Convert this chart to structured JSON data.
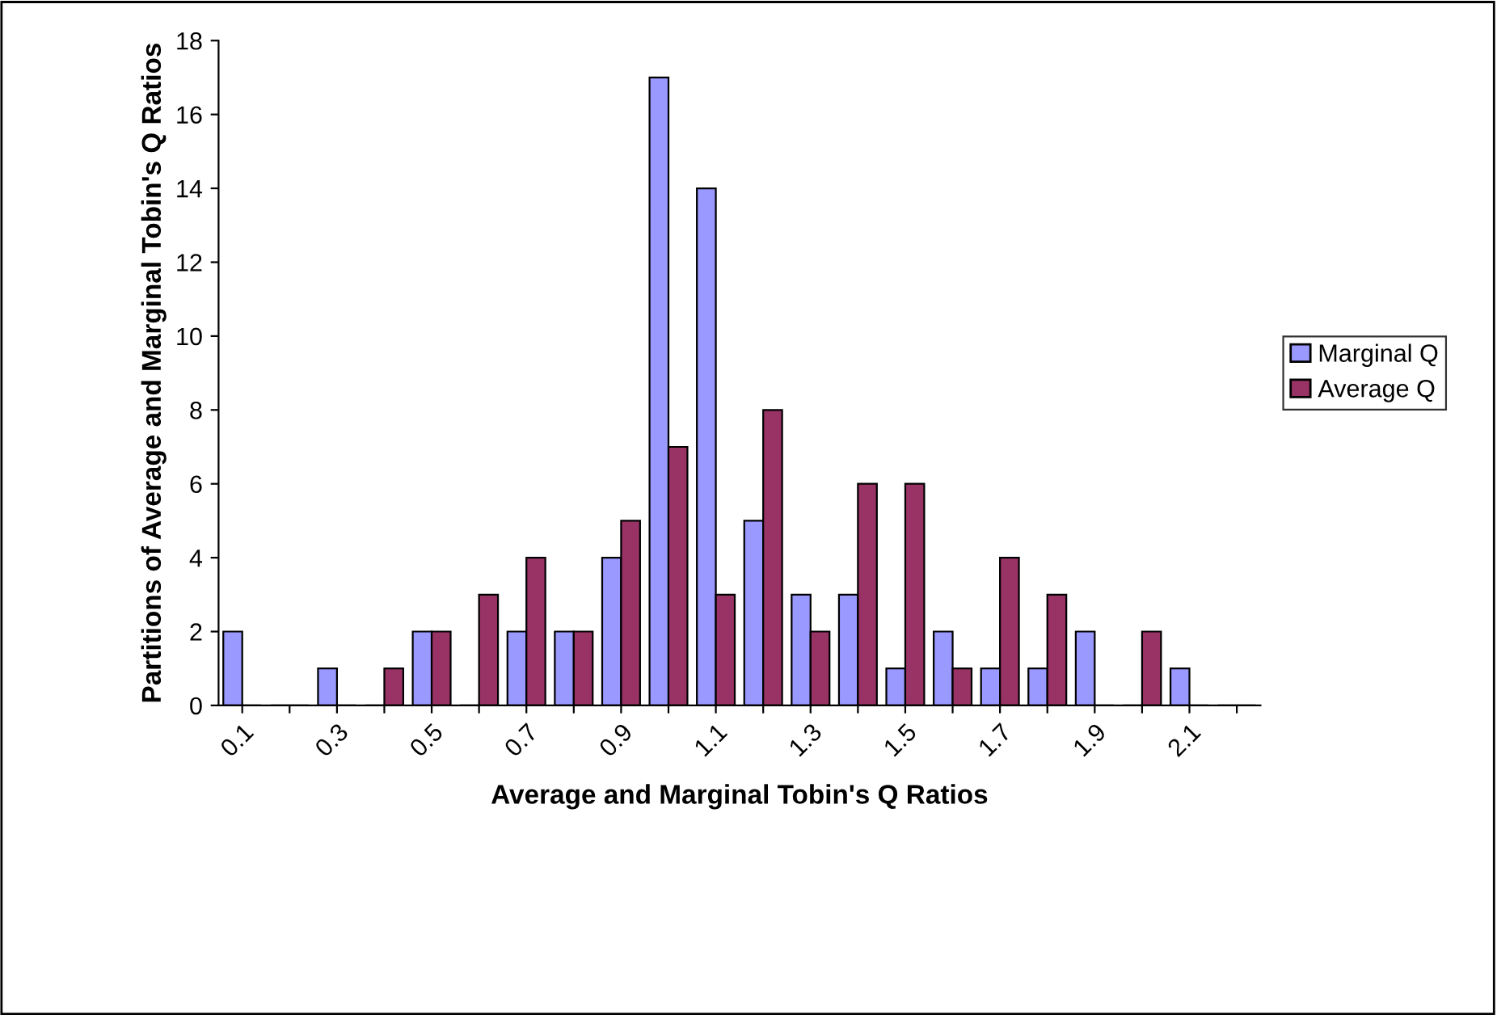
{
  "chart_data": {
    "type": "bar",
    "xlabel": "Average and Marginal Tobin's Q Ratios",
    "ylabel": "Partitions of Average and Marginal Tobin's Q Ratios",
    "categories": [
      "0.1",
      null,
      "0.3",
      null,
      "0.5",
      null,
      "0.7",
      null,
      "0.9",
      null,
      "1.1",
      null,
      "1.3",
      null,
      "1.5",
      null,
      "1.7",
      null,
      "1.9",
      null,
      "2.1",
      null
    ],
    "series": [
      {
        "name": "Marginal Q",
        "color": "#9999ff",
        "values": [
          2,
          0,
          1,
          0,
          2,
          0,
          2,
          2,
          4,
          17,
          14,
          5,
          3,
          3,
          1,
          2,
          1,
          1,
          2,
          0,
          1,
          0
        ]
      },
      {
        "name": "Average Q",
        "color": "#993366",
        "values": [
          0,
          0,
          0,
          1,
          2,
          3,
          4,
          2,
          5,
          7,
          3,
          8,
          2,
          6,
          6,
          1,
          4,
          3,
          0,
          2,
          0,
          0
        ]
      }
    ],
    "ylim": [
      0,
      18
    ],
    "yticks": [
      0,
      2,
      4,
      6,
      8,
      10,
      12,
      14,
      16,
      18
    ],
    "grid": false,
    "legend": "right"
  }
}
